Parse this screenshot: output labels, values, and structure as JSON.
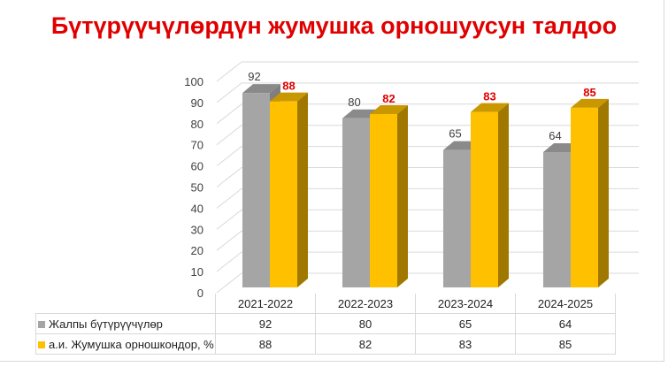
{
  "chart_data": {
    "type": "bar",
    "title": "Бүтүрүүчүлөрдүн жумушка орношуусун талдоо",
    "categories": [
      "2021-2022",
      "2022-2023",
      "2023-2024",
      "2024-2025"
    ],
    "series": [
      {
        "name": "Жалпы бүтүрүүчүлөр",
        "values": [
          92,
          80,
          65,
          64
        ],
        "color": "#a5a5a5",
        "labels": [
          "92",
          "80",
          "65",
          "64"
        ]
      },
      {
        "name": "а.и. Жумушка орношкондор, %",
        "values": [
          88,
          82,
          83,
          85
        ],
        "color": "#ffc000",
        "labels": [
          "88",
          "82",
          "83",
          "85"
        ]
      }
    ],
    "ylim": [
      0,
      100
    ],
    "yticks": [
      "0",
      "10",
      "20",
      "30",
      "40",
      "50",
      "60",
      "70",
      "80",
      "90",
      "100"
    ],
    "grid": true,
    "legend": "data-table"
  }
}
